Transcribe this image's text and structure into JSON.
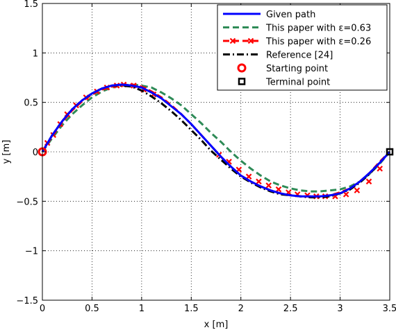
{
  "chart_data": {
    "type": "line",
    "title": "",
    "xlabel": "x [m]",
    "ylabel": "y [m]",
    "xlim": [
      0,
      3.5
    ],
    "ylim": [
      -1.5,
      1.5
    ],
    "xticks": [
      "0",
      "0.5",
      "1",
      "1.5",
      "2",
      "2.5",
      "3",
      "3.5"
    ],
    "yticks": [
      "1.5",
      "1",
      "0.5",
      "0",
      "−0.5",
      "−1",
      "−1.5"
    ],
    "grid": true,
    "legend_position": "top-right",
    "series": [
      {
        "name": "Given path",
        "color": "#0000ff",
        "style": "solid",
        "x": [
          0,
          0.1,
          0.2,
          0.3,
          0.4,
          0.5,
          0.6,
          0.7,
          0.8,
          0.9,
          1.0,
          1.1,
          1.2,
          1.3,
          1.4,
          1.5,
          1.6,
          1.7,
          1.8,
          1.9,
          2.0,
          2.1,
          2.2,
          2.3,
          2.4,
          2.5,
          2.6,
          2.7,
          2.8,
          2.9,
          3.0,
          3.1,
          3.2,
          3.3,
          3.4,
          3.5
        ],
        "y": [
          0,
          0.17,
          0.31,
          0.43,
          0.52,
          0.59,
          0.64,
          0.67,
          0.68,
          0.67,
          0.65,
          0.6,
          0.54,
          0.46,
          0.38,
          0.28,
          0.17,
          0.06,
          -0.05,
          -0.15,
          -0.24,
          -0.3,
          -0.35,
          -0.39,
          -0.42,
          -0.44,
          -0.45,
          -0.45,
          -0.45,
          -0.44,
          -0.42,
          -0.37,
          -0.3,
          -0.21,
          -0.11,
          0
        ]
      },
      {
        "name": "This paper with ε=0.63",
        "color": "#2e8b57",
        "style": "dashed",
        "x": [
          0,
          0.1,
          0.2,
          0.3,
          0.4,
          0.5,
          0.6,
          0.7,
          0.8,
          0.9,
          1.0,
          1.1,
          1.2,
          1.3,
          1.4,
          1.5,
          1.6,
          1.7,
          1.8,
          1.9,
          2.0,
          2.1,
          2.2,
          2.3,
          2.4,
          2.5,
          2.6,
          2.7,
          2.8,
          2.9,
          3.0,
          3.1,
          3.2,
          3.3,
          3.4,
          3.5
        ],
        "y": [
          0,
          0.14,
          0.27,
          0.38,
          0.47,
          0.55,
          0.61,
          0.65,
          0.67,
          0.68,
          0.67,
          0.65,
          0.6,
          0.54,
          0.47,
          0.38,
          0.29,
          0.19,
          0.1,
          0.0,
          -0.09,
          -0.17,
          -0.24,
          -0.3,
          -0.34,
          -0.37,
          -0.39,
          -0.4,
          -0.4,
          -0.39,
          -0.38,
          -0.35,
          -0.3,
          -0.22,
          -0.12,
          0
        ]
      },
      {
        "name": "This paper with ε=0.26",
        "color": "#ff0000",
        "style": "dashed-marker",
        "x": [
          0,
          0.1,
          0.2,
          0.3,
          0.4,
          0.5,
          0.6,
          0.7,
          0.8,
          0.9,
          1.0,
          1.1,
          1.2,
          1.3,
          1.4,
          1.5,
          1.6,
          1.7,
          1.8,
          1.9,
          2.0,
          2.1,
          2.2,
          2.3,
          2.4,
          2.5,
          2.6,
          2.7,
          2.8,
          2.9,
          3.0,
          3.1,
          3.2,
          3.3,
          3.4,
          3.5
        ],
        "y": [
          0,
          0.16,
          0.3,
          0.42,
          0.51,
          0.58,
          0.63,
          0.66,
          0.68,
          0.68,
          0.66,
          0.61,
          0.55,
          0.47,
          0.38,
          0.28,
          0.17,
          0.06,
          -0.05,
          -0.15,
          -0.24,
          -0.3,
          -0.35,
          -0.39,
          -0.42,
          -0.44,
          -0.45,
          -0.45,
          -0.45,
          -0.44,
          -0.41,
          -0.37,
          -0.3,
          -0.21,
          -0.1,
          0
        ],
        "marker_x": [
          0.05,
          0.11,
          0.18,
          0.25,
          0.34,
          0.44,
          0.55,
          0.65,
          0.75,
          0.82,
          0.92,
          1.02,
          1.12,
          1.78,
          1.88,
          1.98,
          2.08,
          2.18,
          2.28,
          2.38,
          2.48,
          2.57,
          2.67,
          2.76,
          2.85,
          2.95,
          3.06,
          3.17,
          3.29,
          3.4
        ],
        "marker_y": [
          0.09,
          0.17,
          0.28,
          0.38,
          0.47,
          0.55,
          0.61,
          0.65,
          0.67,
          0.68,
          0.67,
          0.63,
          0.58,
          -0.03,
          -0.1,
          -0.18,
          -0.25,
          -0.3,
          -0.34,
          -0.38,
          -0.41,
          -0.43,
          -0.44,
          -0.45,
          -0.45,
          -0.45,
          -0.43,
          -0.39,
          -0.3,
          -0.17
        ]
      },
      {
        "name": "Reference [24]",
        "color": "#000000",
        "style": "dash-dot",
        "x": [
          0,
          0.1,
          0.2,
          0.3,
          0.4,
          0.5,
          0.6,
          0.7,
          0.8,
          0.9,
          1.0,
          1.1,
          1.2,
          1.3,
          1.4,
          1.5,
          1.6,
          1.7,
          1.8,
          1.9,
          2.0,
          2.1,
          2.2,
          2.3,
          2.4,
          2.5,
          2.6,
          2.7,
          2.8,
          2.9,
          3.0,
          3.1,
          3.2,
          3.3,
          3.4,
          3.5
        ],
        "y": [
          0,
          0.17,
          0.31,
          0.43,
          0.52,
          0.59,
          0.64,
          0.67,
          0.67,
          0.66,
          0.62,
          0.56,
          0.49,
          0.41,
          0.32,
          0.22,
          0.12,
          0.01,
          -0.08,
          -0.17,
          -0.25,
          -0.31,
          -0.36,
          -0.4,
          -0.43,
          -0.44,
          -0.45,
          -0.46,
          -0.46,
          -0.45,
          -0.42,
          -0.38,
          -0.31,
          -0.22,
          -0.11,
          0
        ]
      }
    ],
    "points": [
      {
        "name": "Starting point",
        "x": 0,
        "y": 0,
        "marker": "circle",
        "color": "#ff0000"
      },
      {
        "name": "Terminal point",
        "x": 3.5,
        "y": 0,
        "marker": "square",
        "color": "#000000"
      }
    ]
  }
}
